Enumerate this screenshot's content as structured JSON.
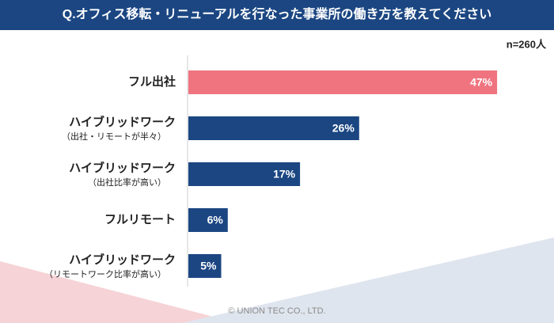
{
  "chart_data": {
    "type": "hbar",
    "title": "Q.オフィス移転・リニューアルを行なった事業所の働き方を教えてください",
    "subtitle": "n=260人",
    "categories": [
      [
        "フル出社"
      ],
      [
        "ハイブリッドワーク",
        "（出社・リモートが半々）"
      ],
      [
        "ハイブリッドワーク",
        "（出社比率が高い）"
      ],
      [
        "フルリモート"
      ],
      [
        "ハイブリッドワーク",
        "（リモートワーク比率が高い）"
      ]
    ],
    "values": [
      47,
      26,
      17,
      6,
      5
    ],
    "value_labels": [
      "47%",
      "26%",
      "17%",
      "6%",
      "5%"
    ],
    "colors": [
      "#f07480",
      "#1b4682",
      "#1b4682",
      "#1b4682",
      "#1b4682"
    ],
    "footer": "© UNION TEC CO., LTD."
  }
}
